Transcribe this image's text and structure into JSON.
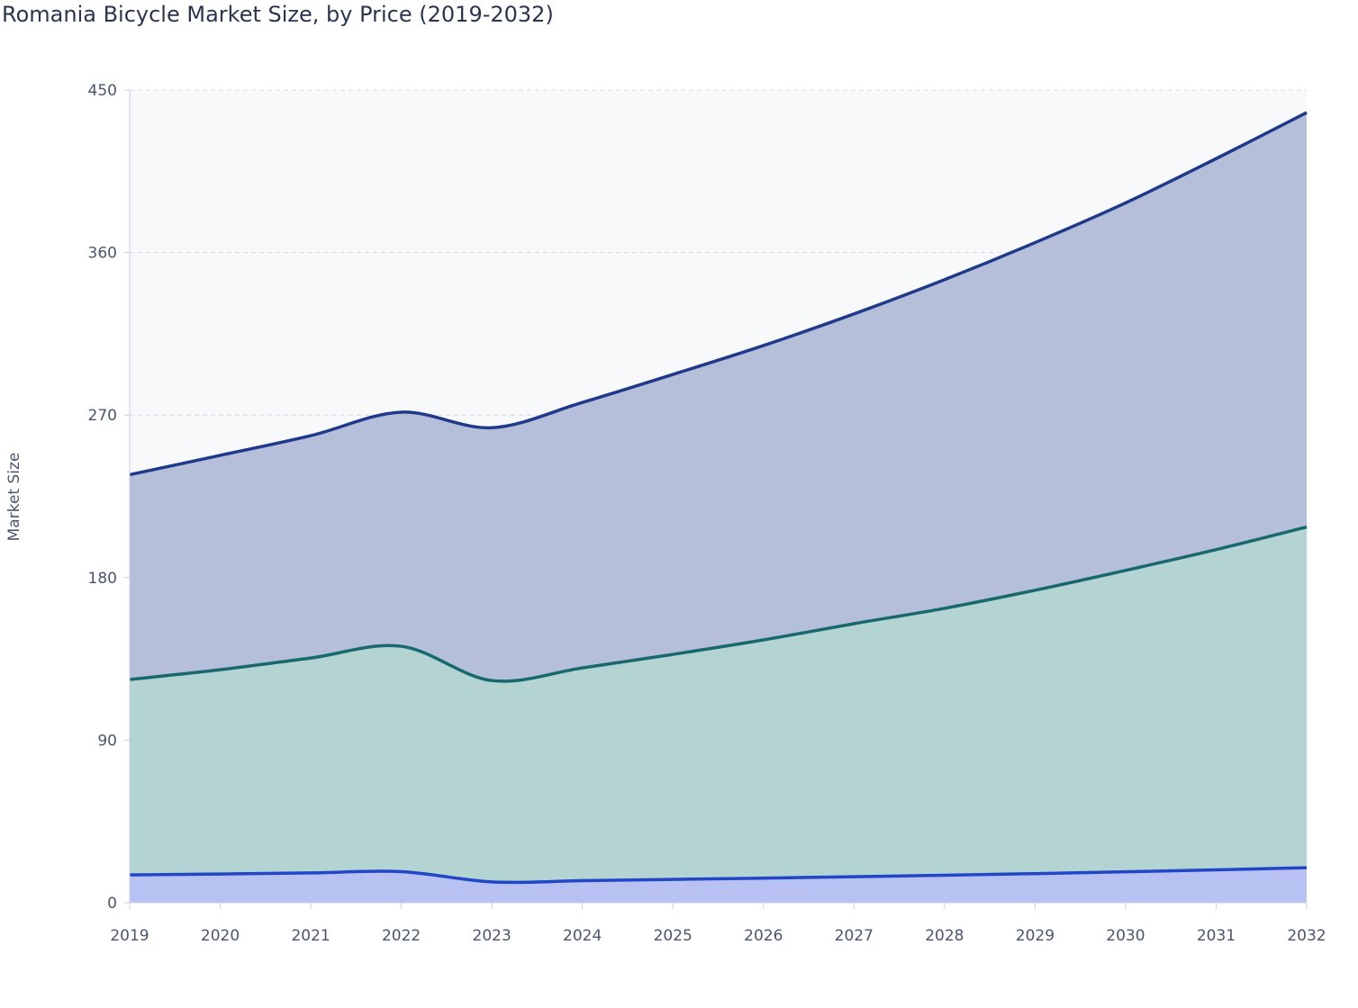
{
  "chart_data": {
    "type": "area",
    "stacked": true,
    "title": "Romania Bicycle Market Size, by Price (2019-2032)",
    "xlabel": "",
    "ylabel": "Market Size",
    "x": [
      2019,
      2020,
      2021,
      2022,
      2023,
      2024,
      2025,
      2026,
      2027,
      2028,
      2029,
      2030,
      2031,
      2032
    ],
    "ylim": [
      0,
      450
    ],
    "yticks": [
      0,
      90,
      180,
      270,
      360,
      450
    ],
    "grid": true,
    "legend": "none",
    "series": [
      {
        "color": "#2346c8",
        "fill": "#b8c2f2",
        "values": [
          15.4,
          15.9,
          16.5,
          17.2,
          11.5,
          12.2,
          12.9,
          13.6,
          14.4,
          15.2,
          16.1,
          17.1,
          18.2,
          19.4
        ]
      },
      {
        "color": "#17696e",
        "fill": "#b4d3d3",
        "values": [
          108.2,
          113.1,
          119.0,
          124.8,
          111.5,
          117.8,
          124.6,
          131.9,
          140.1,
          147.8,
          156.9,
          166.9,
          177.3,
          188.6
        ]
      },
      {
        "color": "#1f3a8a",
        "fill": "#b6bfd9",
        "values": [
          113.4,
          118.7,
          123.1,
          129.6,
          140.0,
          147.0,
          155.0,
          163.0,
          171.5,
          182.0,
          192.5,
          203.5,
          216.5,
          229.5
        ]
      }
    ]
  }
}
